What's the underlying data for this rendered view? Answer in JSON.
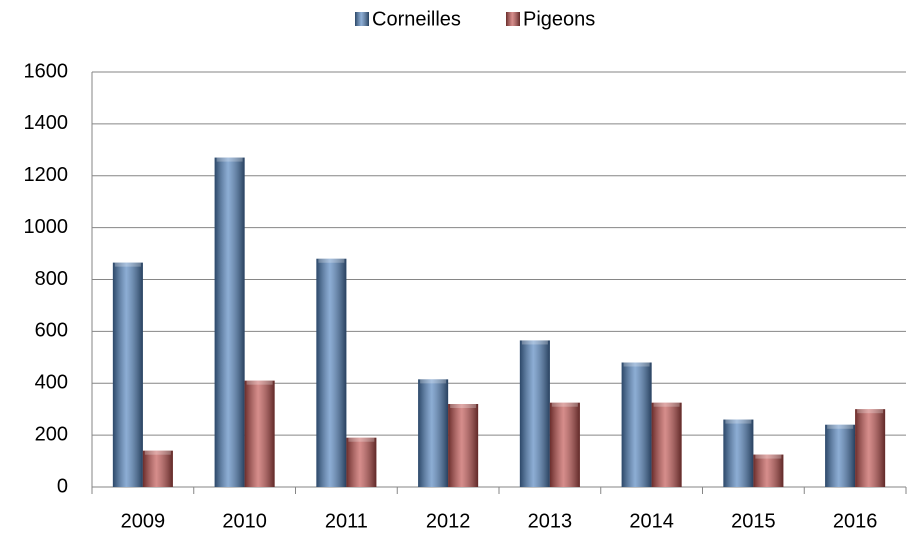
{
  "chart_data": {
    "type": "bar",
    "categories": [
      "2009",
      "2010",
      "2011",
      "2012",
      "2013",
      "2014",
      "2015",
      "2016"
    ],
    "series": [
      {
        "name": "Corneilles",
        "color": "#4f81bd",
        "values": [
          865,
          1270,
          880,
          415,
          565,
          480,
          260,
          240
        ]
      },
      {
        "name": "Pigeons",
        "color": "#c0504d",
        "values": [
          140,
          410,
          190,
          320,
          325,
          325,
          125,
          300
        ]
      }
    ],
    "ylim": [
      0,
      1600
    ],
    "yticks": [
      0,
      200,
      400,
      600,
      800,
      1000,
      1200,
      1400,
      1600
    ],
    "grid": true,
    "legend": "top"
  }
}
